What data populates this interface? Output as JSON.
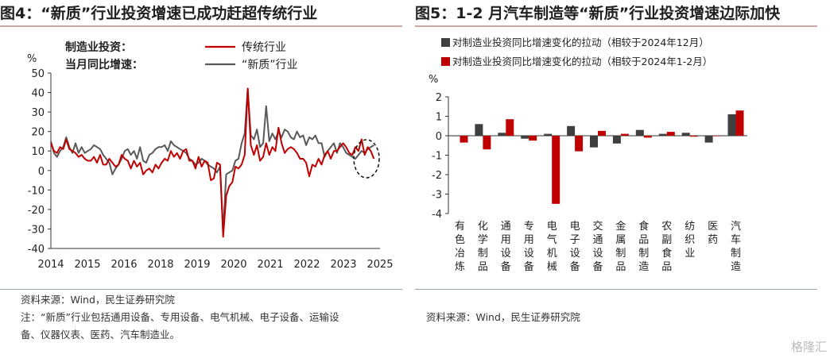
{
  "left": {
    "title": "图4：“新质”行业投资增速已成功赶超传统行业",
    "legend_caption_1": "制造业投资：",
    "legend_caption_2": "当月同比增速：",
    "unit": "%",
    "source": "资料来源：Wind，民生证券研究院",
    "note_1": "注：“新质”行业包括通用设备、专用设备、电气机械、电子设备、运输设",
    "note_2": "备、仪器仪表、医药、汽车制造业。"
  },
  "right": {
    "title": "图5：1-2 月汽车制造等“新质”行业投资增速边际加快",
    "unit": "%",
    "source": "资料来源：Wind，民生证券研究院"
  },
  "watermark": "格隆汇",
  "colors": {
    "red": "#c00000",
    "gray": "#595959",
    "dark": "#3f3f3f"
  },
  "chart_data": [
    {
      "type": "line",
      "ylim": [
        -40,
        50
      ],
      "yticks": [
        -40,
        -30,
        -20,
        -10,
        0,
        10,
        20,
        30,
        40,
        50
      ],
      "xticks": [
        "2014",
        "2015",
        "2016",
        "2018",
        "2019",
        "2020",
        "2021",
        "2022",
        "2023",
        "2025"
      ],
      "series": [
        {
          "name": "传统行业",
          "color": "#c00000",
          "points": [
            [
              2014.0,
              14
            ],
            [
              2014.1,
              10
            ],
            [
              2014.2,
              9
            ],
            [
              2014.3,
              12
            ],
            [
              2014.4,
              11
            ],
            [
              2014.5,
              16
            ],
            [
              2014.6,
              11
            ],
            [
              2014.7,
              10
            ],
            [
              2014.8,
              9
            ],
            [
              2014.9,
              7
            ],
            [
              2015.0,
              8
            ],
            [
              2015.1,
              6
            ],
            [
              2015.2,
              5
            ],
            [
              2015.3,
              5
            ],
            [
              2015.4,
              7
            ],
            [
              2015.5,
              4
            ],
            [
              2015.6,
              8
            ],
            [
              2015.7,
              3
            ],
            [
              2015.8,
              3
            ],
            [
              2015.9,
              6
            ],
            [
              2016.0,
              4
            ],
            [
              2016.1,
              2
            ],
            [
              2016.2,
              3
            ],
            [
              2016.3,
              8
            ],
            [
              2016.4,
              6
            ],
            [
              2016.5,
              5
            ],
            [
              2016.6,
              1
            ],
            [
              2016.7,
              5
            ],
            [
              2016.8,
              2
            ],
            [
              2016.9,
              4
            ],
            [
              2017.0,
              -2
            ],
            [
              2017.1,
              0
            ],
            [
              2017.2,
              1
            ],
            [
              2017.3,
              -1
            ],
            [
              2017.4,
              3
            ],
            [
              2017.5,
              1
            ],
            [
              2017.6,
              4
            ],
            [
              2017.7,
              6
            ],
            [
              2017.8,
              5
            ],
            [
              2017.9,
              10
            ],
            [
              2018.0,
              7
            ],
            [
              2018.1,
              9
            ],
            [
              2018.2,
              6
            ],
            [
              2018.3,
              10
            ],
            [
              2018.4,
              11
            ],
            [
              2018.5,
              5
            ],
            [
              2018.6,
              5
            ],
            [
              2018.7,
              1
            ],
            [
              2018.8,
              7
            ],
            [
              2018.9,
              2
            ],
            [
              2019.0,
              5
            ],
            [
              2019.1,
              4
            ],
            [
              2019.2,
              -5
            ],
            [
              2019.3,
              -4
            ],
            [
              2019.4,
              4
            ],
            [
              2019.5,
              3
            ],
            [
              2019.6,
              -34
            ],
            [
              2019.7,
              -13
            ],
            [
              2019.8,
              -8
            ],
            [
              2019.9,
              -6
            ],
            [
              2020.0,
              2
            ],
            [
              2020.1,
              1
            ],
            [
              2020.2,
              3
            ],
            [
              2020.3,
              8
            ],
            [
              2020.4,
              42
            ],
            [
              2020.5,
              13
            ],
            [
              2020.6,
              8
            ],
            [
              2020.7,
              13
            ],
            [
              2020.8,
              5
            ],
            [
              2020.9,
              7
            ],
            [
              2021.0,
              14
            ],
            [
              2021.1,
              8
            ],
            [
              2021.2,
              12
            ],
            [
              2021.3,
              10
            ],
            [
              2021.4,
              22
            ],
            [
              2021.5,
              14
            ],
            [
              2021.6,
              9
            ],
            [
              2021.7,
              11
            ],
            [
              2021.8,
              12
            ],
            [
              2021.9,
              11
            ],
            [
              2022.0,
              9
            ],
            [
              2022.1,
              6
            ],
            [
              2022.2,
              6
            ],
            [
              2022.3,
              4
            ],
            [
              2022.4,
              -3
            ],
            [
              2022.5,
              3
            ],
            [
              2022.6,
              2
            ],
            [
              2022.7,
              6
            ],
            [
              2022.8,
              3
            ],
            [
              2022.9,
              8
            ],
            [
              2023.0,
              10
            ],
            [
              2023.1,
              6
            ],
            [
              2023.2,
              10
            ],
            [
              2023.3,
              10
            ],
            [
              2023.4,
              12
            ],
            [
              2023.5,
              14
            ],
            [
              2023.6,
              12
            ],
            [
              2023.7,
              9
            ],
            [
              2023.8,
              8
            ],
            [
              2023.9,
              12
            ],
            [
              2024.0,
              10
            ],
            [
              2024.1,
              16
            ],
            [
              2024.2,
              8
            ],
            [
              2024.3,
              12
            ],
            [
              2024.4,
              10
            ],
            [
              2024.5,
              6
            ]
          ]
        },
        {
          "name": "“新质”行业",
          "color": "#595959",
          "points": [
            [
              2014.0,
              15
            ],
            [
              2014.1,
              9
            ],
            [
              2014.2,
              7
            ],
            [
              2014.3,
              10
            ],
            [
              2014.4,
              12
            ],
            [
              2014.5,
              17
            ],
            [
              2014.6,
              12
            ],
            [
              2014.7,
              9
            ],
            [
              2014.8,
              14
            ],
            [
              2014.9,
              9
            ],
            [
              2015.0,
              12
            ],
            [
              2015.1,
              9
            ],
            [
              2015.2,
              10
            ],
            [
              2015.3,
              11
            ],
            [
              2015.4,
              13
            ],
            [
              2015.5,
              12
            ],
            [
              2015.6,
              11
            ],
            [
              2015.7,
              8
            ],
            [
              2015.8,
              6
            ],
            [
              2015.9,
              4
            ],
            [
              2016.0,
              -2
            ],
            [
              2016.1,
              1
            ],
            [
              2016.2,
              3
            ],
            [
              2016.3,
              6
            ],
            [
              2016.4,
              10
            ],
            [
              2016.5,
              11
            ],
            [
              2016.6,
              8
            ],
            [
              2016.7,
              10
            ],
            [
              2016.8,
              6
            ],
            [
              2016.9,
              12
            ],
            [
              2017.0,
              5
            ],
            [
              2017.1,
              4
            ],
            [
              2017.2,
              8
            ],
            [
              2017.3,
              9
            ],
            [
              2017.4,
              11
            ],
            [
              2017.5,
              12
            ],
            [
              2017.6,
              12
            ],
            [
              2017.7,
              13
            ],
            [
              2017.8,
              10
            ],
            [
              2017.9,
              15
            ],
            [
              2018.0,
              13
            ],
            [
              2018.1,
              12
            ],
            [
              2018.2,
              11
            ],
            [
              2018.3,
              10
            ],
            [
              2018.4,
              9
            ],
            [
              2018.5,
              6
            ],
            [
              2018.6,
              5
            ],
            [
              2018.7,
              3
            ],
            [
              2018.8,
              4
            ],
            [
              2018.9,
              6
            ],
            [
              2019.0,
              5
            ],
            [
              2019.1,
              3
            ],
            [
              2019.2,
              2
            ],
            [
              2019.3,
              1
            ],
            [
              2019.4,
              -1
            ],
            [
              2019.5,
              2
            ],
            [
              2019.6,
              -31
            ],
            [
              2019.7,
              -2
            ],
            [
              2019.8,
              -1
            ],
            [
              2019.9,
              0
            ],
            [
              2020.0,
              5
            ],
            [
              2020.1,
              6
            ],
            [
              2020.2,
              14
            ],
            [
              2020.3,
              19
            ],
            [
              2020.4,
              42
            ],
            [
              2020.5,
              18
            ],
            [
              2020.6,
              16
            ],
            [
              2020.7,
              21
            ],
            [
              2020.8,
              12
            ],
            [
              2020.9,
              14
            ],
            [
              2021.0,
              33
            ],
            [
              2021.1,
              15
            ],
            [
              2021.2,
              19
            ],
            [
              2021.3,
              16
            ],
            [
              2021.4,
              20
            ],
            [
              2021.5,
              17
            ],
            [
              2021.6,
              21
            ],
            [
              2021.7,
              20
            ],
            [
              2021.8,
              17
            ],
            [
              2021.9,
              16
            ],
            [
              2022.0,
              20
            ],
            [
              2022.1,
              17
            ],
            [
              2022.2,
              18
            ],
            [
              2022.3,
              13
            ],
            [
              2022.4,
              17
            ],
            [
              2022.5,
              16
            ],
            [
              2022.6,
              18
            ],
            [
              2022.7,
              14
            ],
            [
              2022.8,
              14
            ],
            [
              2022.9,
              7
            ],
            [
              2023.0,
              10
            ],
            [
              2023.1,
              12
            ],
            [
              2023.2,
              14
            ],
            [
              2023.3,
              9
            ],
            [
              2023.4,
              14
            ],
            [
              2023.5,
              12
            ],
            [
              2023.6,
              9
            ],
            [
              2023.7,
              8
            ],
            [
              2023.8,
              7
            ],
            [
              2023.9,
              6
            ],
            [
              2024.0,
              8
            ],
            [
              2024.1,
              10
            ],
            [
              2024.2,
              9
            ],
            [
              2024.3,
              11
            ],
            [
              2024.4,
              12
            ],
            [
              2024.5,
              13
            ]
          ]
        }
      ]
    },
    {
      "type": "bar",
      "ylim": [
        -4,
        2
      ],
      "yticks": [
        -4,
        -3,
        -2,
        -1,
        0,
        1,
        2
      ],
      "categories": [
        "有色冶炼",
        "化学制品",
        "通用设备",
        "专用设备",
        "电气机械",
        "电子设备",
        "交通设备",
        "金属制品",
        "食品制造",
        "农副食品",
        "纺织业",
        "医药",
        "汽车制造"
      ],
      "series": [
        {
          "name": "对制造业投资同比增速变化的拉动（相较于2024年12月）",
          "color": "#3f3f3f",
          "values": [
            0.0,
            0.6,
            0.15,
            -0.15,
            0.1,
            0.5,
            -0.6,
            -0.4,
            0.3,
            0.1,
            0.15,
            -0.35,
            1.1
          ]
        },
        {
          "name": "对制造业投资同比增速变化的拉动（相较于2024年1-2月）",
          "color": "#c00000",
          "values": [
            -0.35,
            -0.7,
            0.85,
            -0.25,
            -3.5,
            -0.8,
            0.25,
            0.1,
            -0.1,
            0.2,
            -0.05,
            0.0,
            1.3
          ]
        }
      ]
    }
  ]
}
